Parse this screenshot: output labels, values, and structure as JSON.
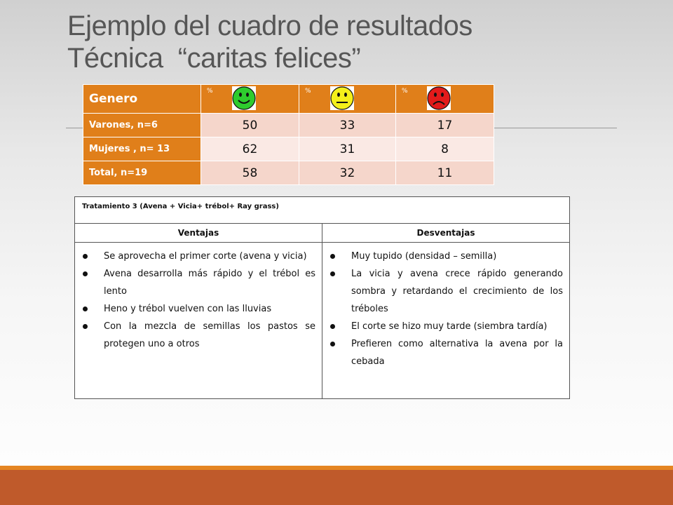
{
  "title": {
    "line1": "Ejemplo del cuadro de resultados",
    "line2": "Técnica  “caritas felices”"
  },
  "results_table": {
    "header_label": "Genero",
    "percent_label": "%",
    "faces": [
      "happy-face",
      "neutral-face",
      "sad-face"
    ],
    "face_colors": [
      "#2ecc2e",
      "#f4f01a",
      "#e21b1b"
    ],
    "rows": [
      {
        "label": "Varones, n=6",
        "values": [
          "50",
          "33",
          "17"
        ]
      },
      {
        "label": "Mujeres , n= 13",
        "values": [
          "62",
          "31",
          "8"
        ]
      },
      {
        "label": "Total, n=19",
        "values": [
          "58",
          "32",
          "11"
        ]
      }
    ]
  },
  "treatment_table": {
    "title": "Tratamiento 3  (Avena + Vicia+ trébol+ Ray grass)",
    "col_ventajas": "Ventajas",
    "col_desventajas": "Desventajas",
    "ventajas": [
      "Se aprovecha el primer corte (avena y vicia)",
      "Avena desarrolla más rápido y el trébol es lento",
      "Heno y trébol vuelven con las lluvias",
      "Con la mezcla de semillas los pastos se protegen uno a otros"
    ],
    "desventajas": [
      "Muy tupido (densidad – semilla)",
      "La vicia y avena crece rápido generando sombra y retardando el crecimiento de los tréboles",
      "El corte se hizo muy tarde (siembra tardía)",
      "Prefieren como alternativa la avena por la cebada"
    ]
  },
  "colors": {
    "header_orange": "#e07f1a",
    "footer_orange": "#bf5a2b",
    "cell_light_pink": "#f5d6cb",
    "cell_lighter_pink": "#fae9e4"
  }
}
